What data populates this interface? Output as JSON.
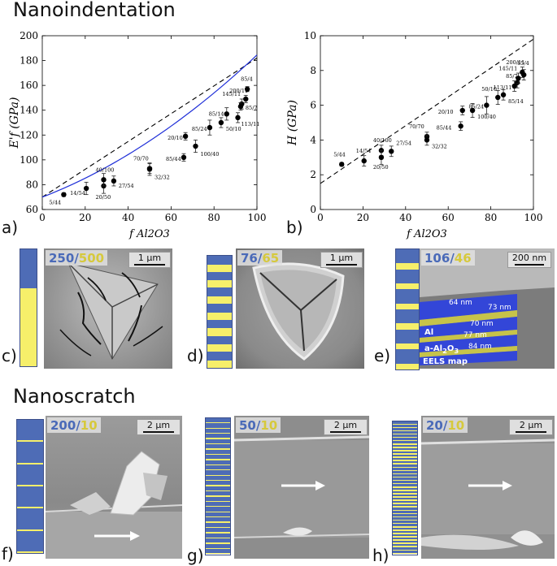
{
  "headings": {
    "nanoindentation": "Nanoindentation",
    "nanoscratch": "Nanoscratch"
  },
  "panel_labels": [
    "a)",
    "b)",
    "c)",
    "d)",
    "e)",
    "f)",
    "g)",
    "h)"
  ],
  "colors": {
    "top_layer": "#4e6cb6",
    "bottom_layer": "#f6ef6a",
    "fit_curve": "#1f2fd8",
    "data_points": "#000000"
  },
  "chart_data": [
    {
      "type": "scatter",
      "panel": "a)",
      "ylabel": "E'f (GPa)",
      "xlabel": "f Al2O3",
      "xlim": [
        0,
        100
      ],
      "ylim": [
        60,
        200
      ],
      "xticks": [
        "0",
        "20",
        "40",
        "60",
        "80",
        "100"
      ],
      "yticks": [
        "60",
        "80",
        "100",
        "120",
        "140",
        "160",
        "180",
        "200"
      ],
      "points": [
        {
          "label": "5/44",
          "x": 10,
          "y": 72,
          "err": 1.5
        },
        {
          "label": "14/54",
          "x": 20.5,
          "y": 77,
          "err": 5
        },
        {
          "label": "20/50",
          "x": 28.6,
          "y": 79,
          "err": 6
        },
        {
          "label": "40/100",
          "x": 28.6,
          "y": 84,
          "err": 5
        },
        {
          "label": "27/54",
          "x": 33.3,
          "y": 83,
          "err": 4
        },
        {
          "label": "32/32",
          "x": 50,
          "y": 92.5,
          "err": 5
        },
        {
          "label": "70/70",
          "x": 50,
          "y": 93,
          "err": 4
        },
        {
          "label": "85/44",
          "x": 65.9,
          "y": 102,
          "err": 3
        },
        {
          "label": "20/10",
          "x": 66.7,
          "y": 119,
          "err": 3
        },
        {
          "label": "100/40",
          "x": 71.4,
          "y": 111,
          "err": 5
        },
        {
          "label": "85/24",
          "x": 78,
          "y": 126,
          "err": 6
        },
        {
          "label": "50/10",
          "x": 83.3,
          "y": 130,
          "err": 4
        },
        {
          "label": "85/14",
          "x": 85.9,
          "y": 137,
          "err": 5
        },
        {
          "label": "113/11",
          "x": 91.1,
          "y": 134,
          "err": 4
        },
        {
          "label": "145/11",
          "x": 92.9,
          "y": 145,
          "err": 4
        },
        {
          "label": "85/7",
          "x": 92.4,
          "y": 143,
          "err": 3
        },
        {
          "label": "200/11",
          "x": 94.8,
          "y": 149,
          "err": 3
        },
        {
          "label": "85/4",
          "x": 95.5,
          "y": 157,
          "err": 2
        }
      ],
      "dashed_line": {
        "from": [
          0,
          70
        ],
        "to": [
          100,
          182
        ]
      },
      "fit_curve": "E = 70 + 66.5 f + 48 f^2"
    },
    {
      "type": "scatter",
      "panel": "b)",
      "ylabel": "H (GPa)",
      "xlabel": "f Al2O3",
      "xlim": [
        0,
        100
      ],
      "ylim": [
        0,
        10
      ],
      "xticks": [
        "0",
        "20",
        "40",
        "60",
        "80",
        "100"
      ],
      "yticks": [
        "0",
        "2",
        "4",
        "6",
        "8",
        "10"
      ],
      "points": [
        {
          "label": "5/44",
          "x": 10,
          "y": 2.6,
          "err": 0.1
        },
        {
          "label": "14/54",
          "x": 20.5,
          "y": 2.8,
          "err": 0.3
        },
        {
          "label": "40/100",
          "x": 28.6,
          "y": 3.4,
          "err": 0.3
        },
        {
          "label": "20/50",
          "x": 28.6,
          "y": 3.0,
          "err": 0.4
        },
        {
          "label": "27/54",
          "x": 33.3,
          "y": 3.35,
          "err": 0.3
        },
        {
          "label": "70/70",
          "x": 50,
          "y": 4.2,
          "err": 0.25
        },
        {
          "label": "32/32",
          "x": 50,
          "y": 4.0,
          "err": 0.3
        },
        {
          "label": "85/44",
          "x": 65.9,
          "y": 4.8,
          "err": 0.25
        },
        {
          "label": "20/10",
          "x": 66.7,
          "y": 5.7,
          "err": 0.25
        },
        {
          "label": "100/40",
          "x": 71.4,
          "y": 5.7,
          "err": 0.4
        },
        {
          "label": "85/24",
          "x": 78,
          "y": 6.0,
          "err": 0.5
        },
        {
          "label": "50/10",
          "x": 83.3,
          "y": 6.45,
          "err": 0.4
        },
        {
          "label": "85/14",
          "x": 85.9,
          "y": 6.6,
          "err": 0.3
        },
        {
          "label": "113/11",
          "x": 91.1,
          "y": 7.1,
          "err": 0.3
        },
        {
          "label": "85/7",
          "x": 92.4,
          "y": 7.3,
          "err": 0.3
        },
        {
          "label": "145/11",
          "x": 92.9,
          "y": 7.55,
          "err": 0.3
        },
        {
          "label": "200/11",
          "x": 94.8,
          "y": 7.9,
          "err": 0.3
        },
        {
          "label": "85/4",
          "x": 95.5,
          "y": 7.75,
          "err": 0.3
        }
      ],
      "dashed_line": {
        "from": [
          0,
          1.5
        ],
        "to": [
          100,
          9.8
        ]
      }
    }
  ],
  "micrographs": {
    "c": {
      "top": "250",
      "sep": "/",
      "bottom": "500",
      "scale": "1 μm"
    },
    "d": {
      "top": "76",
      "sep": "/",
      "bottom": "65",
      "scale": "1 μm"
    },
    "e": {
      "top": "106",
      "sep": "/",
      "bottom": "46",
      "scale": "200 nm",
      "thickness_labels": [
        "64 nm",
        "73 nm",
        "70 nm",
        "77 nm",
        "84 nm"
      ],
      "al_label": "Al",
      "alox_label": "a-Al",
      "alox_sub": "2",
      "alox_o": "O",
      "alox_sub2": "3",
      "eels": "EELS map"
    },
    "f": {
      "top": "200",
      "sep": "/",
      "bottom": "10",
      "scale": "2 μm"
    },
    "g": {
      "top": "50",
      "sep": "/",
      "bottom": "10",
      "scale": "2 μm"
    },
    "h": {
      "top": "20",
      "sep": "/",
      "bottom": "10",
      "scale": "2 μm"
    }
  },
  "stacks": {
    "c_bilayers": 1,
    "d_bilayers": 7,
    "e_bilayers": 6,
    "f_bilayers": 6,
    "g_bilayers": 26,
    "h_bilayers": 40
  }
}
